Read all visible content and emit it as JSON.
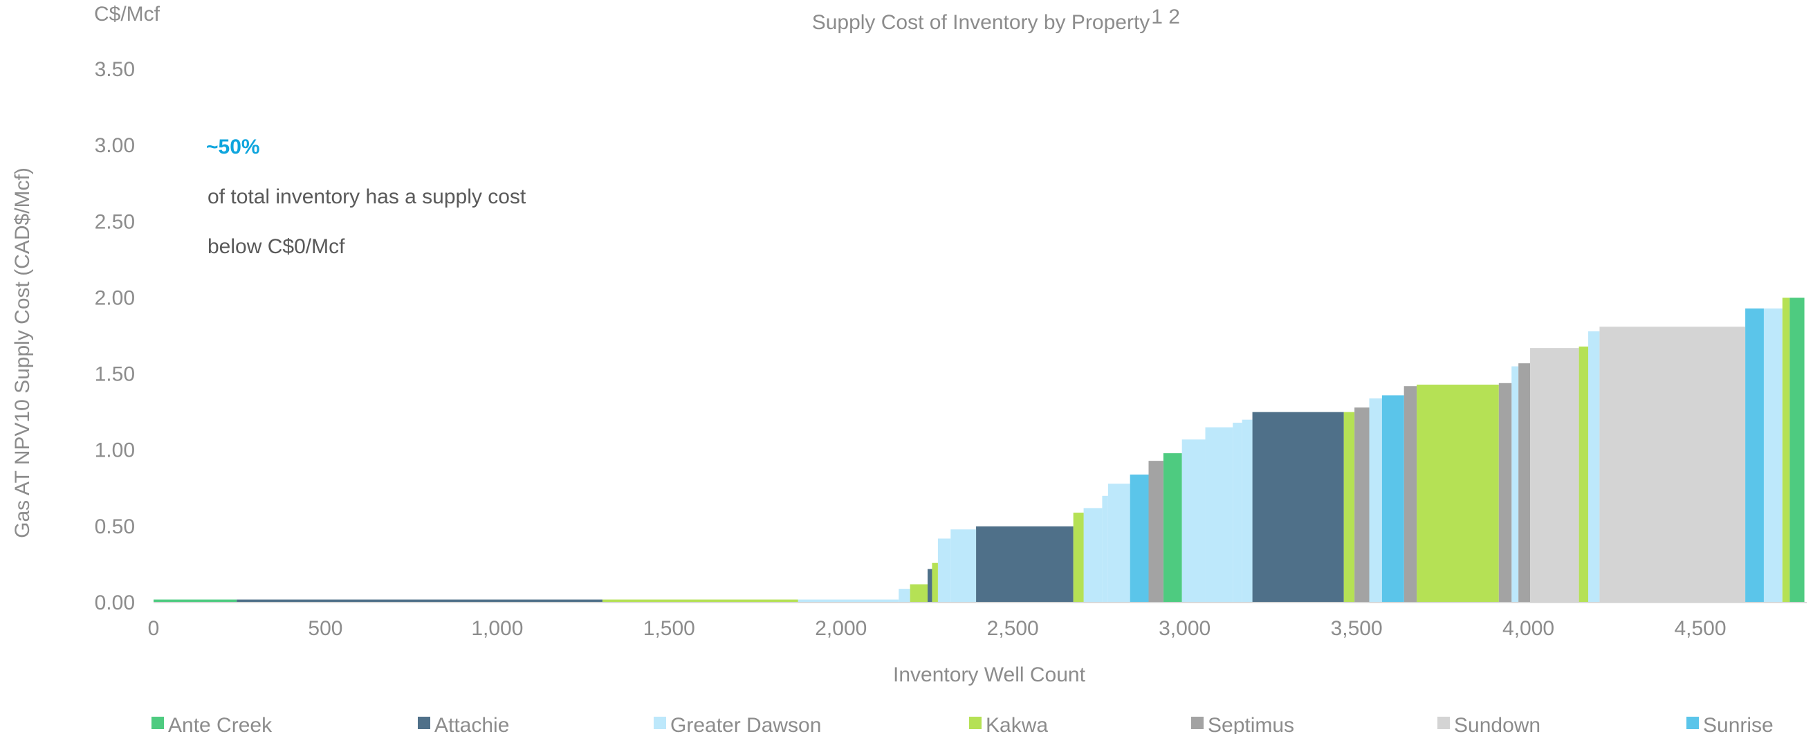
{
  "chart_data": {
    "type": "step-bar",
    "title": "Supply Cost of Inventory by Property",
    "title_superscript": "1 2",
    "unit_label": "C$/Mcf",
    "y_label": "Gas AT NPV10 Supply Cost (CAD$/Mcf)",
    "x_label": "Inventory Well Count",
    "annotation": {
      "headline": "~50%",
      "lines": [
        "of total inventory has a supply cost",
        "below C$0/Mcf"
      ]
    },
    "xlim": [
      0,
      4810
    ],
    "ylim": [
      0,
      3.5
    ],
    "xticks": [
      0,
      500,
      {
        "value": 1000,
        "label": "1,000"
      },
      {
        "value": 1500,
        "label": "1,500"
      },
      {
        "value": 2000,
        "label": "2,000"
      },
      {
        "value": 2500,
        "label": "2,500"
      },
      {
        "value": 3000,
        "label": "3,000"
      },
      {
        "value": 3500,
        "label": "3,500"
      },
      {
        "value": 4000,
        "label": "4,000"
      },
      {
        "value": 4500,
        "label": "4,500"
      }
    ],
    "yticks": [
      {
        "value": 0,
        "label": "0.00"
      },
      {
        "value": 0.5,
        "label": "0.50"
      },
      {
        "value": 1,
        "label": "1.00"
      },
      {
        "value": 1.5,
        "label": "1.50"
      },
      {
        "value": 2,
        "label": "2.00"
      },
      {
        "value": 2.5,
        "label": "2.50"
      },
      {
        "value": 3,
        "label": "3.00"
      },
      {
        "value": 3.5,
        "label": "3.50"
      }
    ],
    "series": [
      {
        "name": "Ante Creek",
        "color": "#4ecb80",
        "x": [
          [
            0,
            242
          ],
          [
            2938,
            2992
          ],
          [
            4760,
            4803
          ]
        ],
        "values": [
          0.02,
          0.98,
          2.0
        ]
      },
      {
        "name": "Attachie",
        "color": "#4f7089",
        "x": [
          [
            242,
            1306
          ],
          [
            2252,
            2265
          ],
          [
            2393,
            2676
          ],
          [
            3197,
            3463
          ]
        ],
        "values": [
          0.02,
          0.22,
          0.5,
          1.25
        ]
      },
      {
        "name": "Greater Dawson",
        "color": "#bde8fb",
        "x": [
          [
            1875,
            2168
          ],
          [
            2168,
            2201
          ],
          [
            2282,
            2319
          ],
          [
            2319,
            2393
          ],
          [
            2706,
            2760
          ],
          [
            2760,
            2777
          ],
          [
            2777,
            2841
          ],
          [
            2992,
            3060
          ],
          [
            3060,
            3140
          ],
          [
            3140,
            3167
          ],
          [
            3167,
            3197
          ],
          [
            3537,
            3574
          ],
          [
            3951,
            3971
          ],
          [
            4174,
            4207
          ],
          [
            4685,
            4739
          ]
        ],
        "values": [
          0.02,
          0.09,
          0.42,
          0.48,
          0.62,
          0.7,
          0.78,
          1.07,
          1.15,
          1.18,
          1.2,
          1.34,
          1.55,
          1.78,
          1.93
        ]
      },
      {
        "name": "Kakwa",
        "color": "#b5e155",
        "x": [
          [
            1306,
            1875
          ],
          [
            2201,
            2252
          ],
          [
            2265,
            2282
          ],
          [
            2676,
            2706
          ],
          [
            3463,
            3494
          ],
          [
            3675,
            3914
          ],
          [
            4147,
            4174
          ],
          [
            4739,
            4760
          ]
        ],
        "values": [
          0.02,
          0.12,
          0.26,
          0.59,
          1.25,
          1.43,
          1.68,
          2.0
        ]
      },
      {
        "name": "Septimus",
        "color": "#a3a3a3",
        "x": [
          [
            2895,
            2938
          ],
          [
            3494,
            3537
          ],
          [
            3638,
            3675
          ],
          [
            3914,
            3951
          ],
          [
            3971,
            4005
          ]
        ],
        "values": [
          0.93,
          1.28,
          1.42,
          1.44,
          1.57
        ]
      },
      {
        "name": "Sundown",
        "color": "#d4d4d4",
        "x": [
          [
            4005,
            4147
          ],
          [
            4207,
            4631
          ]
        ],
        "values": [
          1.67,
          1.81
        ]
      },
      {
        "name": "Sunrise",
        "color": "#5bc5ea",
        "x": [
          [
            2841,
            2895
          ],
          [
            3574,
            3638
          ],
          [
            4631,
            4685
          ]
        ],
        "values": [
          0.84,
          1.36,
          1.93
        ]
      }
    ]
  }
}
